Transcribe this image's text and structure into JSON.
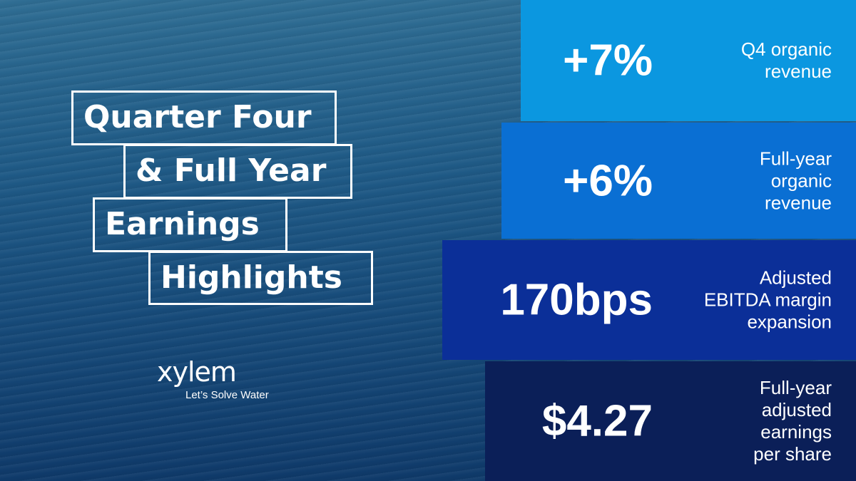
{
  "title": {
    "lines": [
      "Quarter Four",
      "& Full Year",
      "Earnings",
      "Highlights"
    ]
  },
  "logo": {
    "name": "xylem",
    "tagline": "Let’s Solve Water"
  },
  "highlights": [
    {
      "value": "+7%",
      "label": [
        "Q4 organic",
        "revenue"
      ]
    },
    {
      "value": "+6%",
      "label": [
        "Full-year",
        "organic",
        "revenue"
      ]
    },
    {
      "value": "170bps",
      "label": [
        "Adjusted",
        "EBITDA margin",
        "expansion"
      ]
    },
    {
      "value": "$4.27",
      "label": [
        "Full-year",
        "adjusted",
        "earnings",
        "per share"
      ]
    }
  ]
}
